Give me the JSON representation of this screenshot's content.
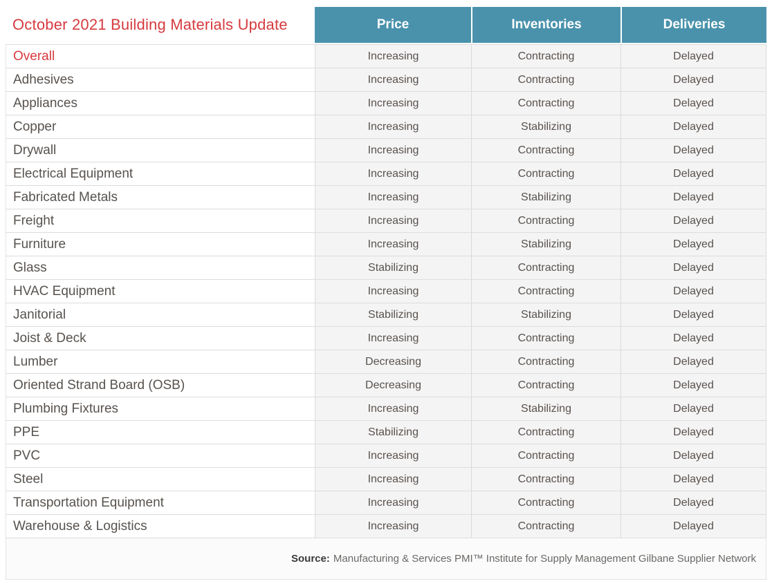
{
  "title": "October 2021 Building Materials Update",
  "chart_data": {
    "type": "table",
    "title": "October 2021 Building Materials Update",
    "columns": [
      "Price",
      "Inventories",
      "Deliveries"
    ],
    "rows": [
      {
        "label": "Overall",
        "values": [
          "Increasing",
          "Contracting",
          "Delayed"
        ],
        "highlight": true
      },
      {
        "label": "Adhesives",
        "values": [
          "Increasing",
          "Contracting",
          "Delayed"
        ],
        "highlight": false
      },
      {
        "label": "Appliances",
        "values": [
          "Increasing",
          "Contracting",
          "Delayed"
        ],
        "highlight": false
      },
      {
        "label": "Copper",
        "values": [
          "Increasing",
          "Stabilizing",
          "Delayed"
        ],
        "highlight": false
      },
      {
        "label": "Drywall",
        "values": [
          "Increasing",
          "Contracting",
          "Delayed"
        ],
        "highlight": false
      },
      {
        "label": "Electrical Equipment",
        "values": [
          "Increasing",
          "Contracting",
          "Delayed"
        ],
        "highlight": false
      },
      {
        "label": "Fabricated Metals",
        "values": [
          "Increasing",
          "Stabilizing",
          "Delayed"
        ],
        "highlight": false
      },
      {
        "label": "Freight",
        "values": [
          "Increasing",
          "Contracting",
          "Delayed"
        ],
        "highlight": false
      },
      {
        "label": "Furniture",
        "values": [
          "Increasing",
          "Stabilizing",
          "Delayed"
        ],
        "highlight": false
      },
      {
        "label": "Glass",
        "values": [
          "Stabilizing",
          "Contracting",
          "Delayed"
        ],
        "highlight": false
      },
      {
        "label": "HVAC Equipment",
        "values": [
          "Increasing",
          "Contracting",
          "Delayed"
        ],
        "highlight": false
      },
      {
        "label": "Janitorial",
        "values": [
          "Stabilizing",
          "Stabilizing",
          "Delayed"
        ],
        "highlight": false
      },
      {
        "label": "Joist & Deck",
        "values": [
          "Increasing",
          "Contracting",
          "Delayed"
        ],
        "highlight": false
      },
      {
        "label": "Lumber",
        "values": [
          "Decreasing",
          "Contracting",
          "Delayed"
        ],
        "highlight": false
      },
      {
        "label": "Oriented Strand Board (OSB)",
        "values": [
          "Decreasing",
          "Contracting",
          "Delayed"
        ],
        "highlight": false
      },
      {
        "label": "Plumbing Fixtures",
        "values": [
          "Increasing",
          "Stabilizing",
          "Delayed"
        ],
        "highlight": false
      },
      {
        "label": "PPE",
        "values": [
          "Stabilizing",
          "Contracting",
          "Delayed"
        ],
        "highlight": false
      },
      {
        "label": "PVC",
        "values": [
          "Increasing",
          "Contracting",
          "Delayed"
        ],
        "highlight": false
      },
      {
        "label": "Steel",
        "values": [
          "Increasing",
          "Contracting",
          "Delayed"
        ],
        "highlight": false
      },
      {
        "label": "Transportation Equipment",
        "values": [
          "Increasing",
          "Contracting",
          "Delayed"
        ],
        "highlight": false
      },
      {
        "label": "Warehouse & Logistics",
        "values": [
          "Increasing",
          "Contracting",
          "Delayed"
        ],
        "highlight": false
      }
    ]
  },
  "source": {
    "label": "Source:",
    "text": "Manufacturing & Services PMI™ Institute for Supply Management Gilbane Supplier Network"
  },
  "colors": {
    "header_bg": "#4a92ac",
    "accent_red": "#d63a3e",
    "value_cell_bg": "#f5f4f4",
    "border": "#dcdcdc",
    "text": "#57524e"
  }
}
